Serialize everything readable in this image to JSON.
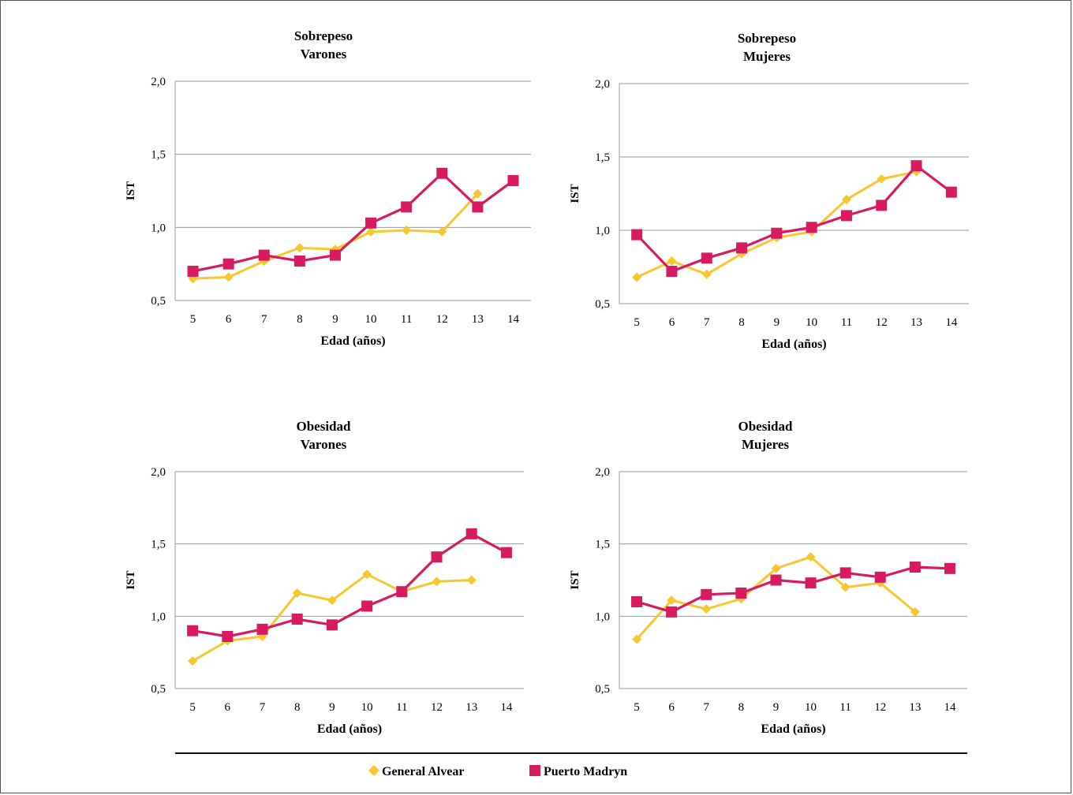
{
  "chart_data": [
    {
      "type": "line",
      "title": [
        "Sobrepeso",
        "Varones"
      ],
      "xlabel": "Edad (años)",
      "ylabel": "IST",
      "categories": [
        "5",
        "6",
        "7",
        "8",
        "9",
        "10",
        "11",
        "12",
        "13",
        "14"
      ],
      "ylim": [
        0.5,
        2.0
      ],
      "yticks": [
        "0,5",
        "1,0",
        "1,5",
        "2,0"
      ],
      "grid": true,
      "series": [
        {
          "name": "General Alvear",
          "marker": "diamond",
          "color": "#F6C72F",
          "values": [
            0.65,
            0.66,
            0.77,
            0.86,
            0.85,
            0.97,
            0.98,
            0.97,
            1.23,
            null
          ]
        },
        {
          "name": "Puerto Madryn",
          "marker": "square",
          "color": "#D81B60",
          "values": [
            0.7,
            0.75,
            0.81,
            0.77,
            0.81,
            1.03,
            1.14,
            1.37,
            1.14,
            1.32
          ]
        }
      ]
    },
    {
      "type": "line",
      "title": [
        "Sobrepeso",
        "Mujeres"
      ],
      "xlabel": "Edad (años)",
      "ylabel": "IST",
      "categories": [
        "5",
        "6",
        "7",
        "8",
        "9",
        "10",
        "11",
        "12",
        "13",
        "14"
      ],
      "ylim": [
        0.5,
        2.0
      ],
      "yticks": [
        "0,5",
        "1,0",
        "1,5",
        "2,0"
      ],
      "grid": true,
      "series": [
        {
          "name": "General Alvear",
          "marker": "diamond",
          "color": "#F6C72F",
          "values": [
            0.68,
            0.79,
            0.7,
            0.84,
            0.95,
            0.99,
            1.21,
            1.35,
            1.4,
            null
          ]
        },
        {
          "name": "Puerto Madryn",
          "marker": "square",
          "color": "#D81B60",
          "values": [
            0.97,
            0.72,
            0.81,
            0.88,
            0.98,
            1.02,
            1.1,
            1.17,
            1.44,
            1.26
          ]
        }
      ]
    },
    {
      "type": "line",
      "title": [
        "Obesidad",
        "Varones"
      ],
      "xlabel": "Edad (años)",
      "ylabel": "IST",
      "categories": [
        "5",
        "6",
        "7",
        "8",
        "9",
        "10",
        "11",
        "12",
        "13",
        "14"
      ],
      "ylim": [
        0.5,
        2.0
      ],
      "yticks": [
        "0,5",
        "1,0",
        "1,5",
        "2,0"
      ],
      "grid": true,
      "series": [
        {
          "name": "General Alvear",
          "marker": "diamond",
          "color": "#F6C72F",
          "values": [
            0.69,
            0.83,
            0.86,
            1.16,
            1.11,
            1.29,
            1.17,
            1.24,
            1.25,
            null
          ]
        },
        {
          "name": "Puerto Madryn",
          "marker": "square",
          "color": "#D81B60",
          "values": [
            0.9,
            0.86,
            0.91,
            0.98,
            0.94,
            1.07,
            1.17,
            1.41,
            1.57,
            1.44
          ]
        }
      ]
    },
    {
      "type": "line",
      "title": [
        "Obesidad",
        "Mujeres"
      ],
      "xlabel": "Edad (años)",
      "ylabel": "IST",
      "categories": [
        "5",
        "6",
        "7",
        "8",
        "9",
        "10",
        "11",
        "12",
        "13",
        "14"
      ],
      "ylim": [
        0.5,
        2.0
      ],
      "yticks": [
        "0,5",
        "1,0",
        "1,5",
        "2,0"
      ],
      "grid": true,
      "series": [
        {
          "name": "General Alvear",
          "marker": "diamond",
          "color": "#F6C72F",
          "values": [
            0.84,
            1.11,
            1.05,
            1.12,
            1.33,
            1.41,
            1.2,
            1.23,
            1.03,
            null
          ]
        },
        {
          "name": "Puerto Madryn",
          "marker": "square",
          "color": "#D81B60",
          "values": [
            1.1,
            1.03,
            1.15,
            1.16,
            1.25,
            1.23,
            1.3,
            1.27,
            1.34,
            1.33
          ]
        }
      ]
    }
  ],
  "legend": {
    "placement": "bottom",
    "items": [
      {
        "label": "General Alvear",
        "marker": "diamond",
        "color": "#F6C72F"
      },
      {
        "label": "Puerto Madryn",
        "marker": "square",
        "color": "#D81B60"
      }
    ]
  }
}
